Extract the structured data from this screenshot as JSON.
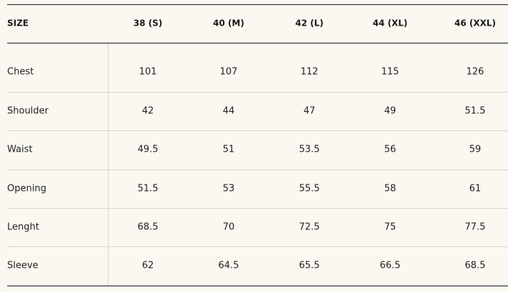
{
  "table": {
    "header": [
      "SIZE",
      "38 (S)",
      "40 (M)",
      "42 (L)",
      "44 (XL)",
      "46 (XXL)"
    ],
    "rows": [
      [
        "Chest",
        101,
        107,
        112,
        115,
        126
      ],
      [
        "Shoulder",
        42,
        44,
        47,
        49,
        51.5
      ],
      [
        "Waist",
        49.5,
        51,
        53.5,
        56,
        59
      ],
      [
        "Opening",
        51.5,
        53,
        55.5,
        58,
        61
      ],
      [
        "Lenght",
        68.5,
        70,
        72.5,
        75,
        77.5
      ],
      [
        "Sleeve",
        62,
        64.5,
        65.5,
        66.5,
        68.5
      ]
    ]
  }
}
